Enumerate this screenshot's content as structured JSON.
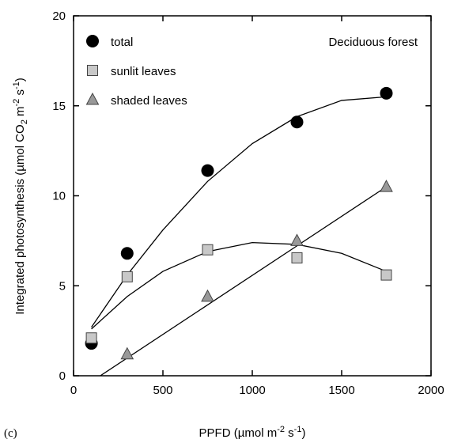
{
  "chart_data": {
    "type": "scatter",
    "panel_label": "(c)",
    "annotation": "Deciduous forest",
    "xlabel": [
      "PPFD  (µmol m",
      "-2",
      " s",
      "-1",
      ")"
    ],
    "ylabel": [
      "Integrated photosynthesis  (µmol CO",
      "2",
      " m",
      "-2",
      " s",
      "-1",
      ")"
    ],
    "xlim": [
      0,
      2000
    ],
    "xticks": [
      0,
      500,
      1000,
      1500,
      2000
    ],
    "ylim": [
      0,
      20
    ],
    "yticks": [
      0,
      5,
      10,
      15,
      20
    ],
    "series": [
      {
        "name": "total",
        "marker": "circle",
        "color": "#000000",
        "x": [
          100,
          300,
          750,
          1250,
          1750
        ],
        "values": [
          1.8,
          6.8,
          11.4,
          14.1,
          15.7
        ],
        "fit": {
          "x": [
            100,
            300,
            500,
            750,
            1000,
            1250,
            1500,
            1750
          ],
          "values": [
            2.7,
            5.6,
            8.1,
            10.8,
            12.9,
            14.4,
            15.3,
            15.5
          ]
        }
      },
      {
        "name": "sunlit leaves",
        "marker": "square",
        "color": "#c8c8c8",
        "x": [
          100,
          300,
          750,
          1250,
          1750
        ],
        "values": [
          2.1,
          5.5,
          7.0,
          6.55,
          5.6
        ],
        "fit": {
          "x": [
            100,
            300,
            500,
            750,
            1000,
            1250,
            1500,
            1750
          ],
          "values": [
            2.6,
            4.4,
            5.8,
            6.9,
            7.4,
            7.3,
            6.8,
            5.8
          ]
        }
      },
      {
        "name": "shaded leaves",
        "marker": "triangle",
        "color": "#999999",
        "x": [
          300,
          750,
          1250,
          1750
        ],
        "values": [
          1.2,
          4.4,
          7.5,
          10.5
        ],
        "fit": {
          "x": [
            150,
            1750
          ],
          "values": [
            0,
            10.5
          ]
        }
      }
    ]
  }
}
